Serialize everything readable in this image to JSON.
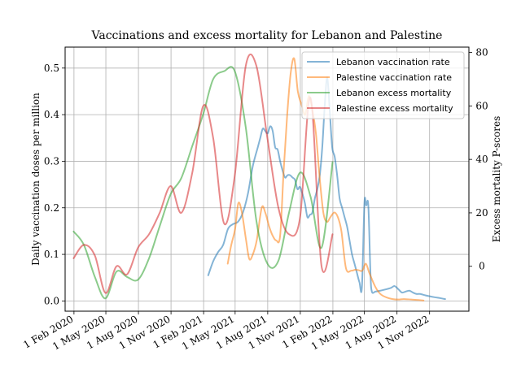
{
  "chart_data": {
    "type": "line",
    "title": "Vaccinations and excess mortality for Lebanon and Palestine",
    "ylabel_left": "Daily vaccination doses per million",
    "ylabel_right": "Excess mortality P-scores",
    "ylim_left": [
      -0.022,
      0.545
    ],
    "ylim_right": [
      -16.8,
      82
    ],
    "yticks_left": [
      0.0,
      0.1,
      0.2,
      0.3,
      0.4,
      0.5
    ],
    "yticks_right": [
      0,
      20,
      40,
      60,
      80
    ],
    "ytick_labels_left": [
      "0.0",
      "0.1",
      "0.2",
      "0.3",
      "0.4",
      "0.5"
    ],
    "ytick_labels_right": [
      "0",
      "20",
      "40",
      "60",
      "80"
    ],
    "xlim": [
      "2020-01-07",
      "2023-02-20"
    ],
    "xticks": [
      "2020-02-01",
      "2020-05-01",
      "2020-08-01",
      "2020-11-01",
      "2021-02-01",
      "2021-05-01",
      "2021-08-01",
      "2021-11-01",
      "2022-02-01",
      "2022-05-01",
      "2022-08-01",
      "2022-11-01"
    ],
    "xtick_labels": [
      "1 Feb 2020",
      "1 May 2020",
      "1 Aug 2020",
      "1 Nov 2020",
      "1 Feb 2021",
      "1 May 2021",
      "1 Aug 2021",
      "1 Nov 2021",
      "1 Feb 2022",
      "1 May 2022",
      "1 Aug 2022",
      "1 Nov 2022"
    ],
    "grid": true,
    "legend_position": "top-right",
    "series": [
      {
        "name": "Lebanon vaccination rate",
        "axis": "left",
        "color": "#1f77b4",
        "x": [
          "2021-02-14",
          "2021-02-28",
          "2021-03-14",
          "2021-03-28",
          "2021-04-11",
          "2021-04-25",
          "2021-05-09",
          "2021-05-23",
          "2021-06-06",
          "2021-06-20",
          "2021-07-04",
          "2021-07-11",
          "2021-07-18",
          "2021-07-25",
          "2021-08-01",
          "2021-08-08",
          "2021-08-15",
          "2021-08-22",
          "2021-08-29",
          "2021-09-05",
          "2021-09-12",
          "2021-09-19",
          "2021-09-26",
          "2021-10-03",
          "2021-10-10",
          "2021-10-17",
          "2021-10-24",
          "2021-10-31",
          "2021-11-07",
          "2021-11-14",
          "2021-11-21",
          "2021-11-28",
          "2021-12-05",
          "2021-12-12",
          "2021-12-19",
          "2021-12-26",
          "2022-01-02",
          "2022-01-09",
          "2022-01-16",
          "2022-01-23",
          "2022-01-30",
          "2022-02-06",
          "2022-02-13",
          "2022-02-20",
          "2022-02-27",
          "2022-03-06",
          "2022-03-13",
          "2022-03-20",
          "2022-03-27",
          "2022-04-03",
          "2022-04-10",
          "2022-04-17",
          "2022-04-24",
          "2022-05-01",
          "2022-05-06",
          "2022-05-12",
          "2022-05-18",
          "2022-05-22",
          "2022-06-01",
          "2022-06-15",
          "2022-07-01",
          "2022-07-15",
          "2022-07-25",
          "2022-08-05",
          "2022-08-15",
          "2022-08-25",
          "2022-09-05",
          "2022-09-15",
          "2022-09-25",
          "2022-10-05",
          "2022-10-20",
          "2022-11-01",
          "2022-11-15",
          "2022-12-01",
          "2022-12-15"
        ],
        "y": [
          0.055,
          0.085,
          0.105,
          0.12,
          0.155,
          0.165,
          0.17,
          0.19,
          0.23,
          0.29,
          0.33,
          0.35,
          0.37,
          0.365,
          0.36,
          0.375,
          0.365,
          0.33,
          0.325,
          0.3,
          0.28,
          0.265,
          0.27,
          0.27,
          0.265,
          0.26,
          0.24,
          0.245,
          0.23,
          0.21,
          0.18,
          0.185,
          0.19,
          0.22,
          0.24,
          0.27,
          0.33,
          0.42,
          0.48,
          0.41,
          0.33,
          0.31,
          0.27,
          0.22,
          0.2,
          0.18,
          0.16,
          0.13,
          0.1,
          0.08,
          0.06,
          0.04,
          0.03,
          0.21,
          0.205,
          0.205,
          0.06,
          0.02,
          0.02,
          0.022,
          0.025,
          0.028,
          0.032,
          0.025,
          0.018,
          0.02,
          0.022,
          0.018,
          0.015,
          0.015,
          0.012,
          0.01,
          0.008,
          0.006,
          0.004
        ]
      },
      {
        "name": "Palestine vaccination rate",
        "axis": "left",
        "color": "#ff7f0e",
        "x": [
          "2021-04-10",
          "2021-04-20",
          "2021-05-01",
          "2021-05-10",
          "2021-05-20",
          "2021-06-01",
          "2021-06-10",
          "2021-06-20",
          "2021-07-01",
          "2021-07-15",
          "2021-07-25",
          "2021-08-05",
          "2021-08-15",
          "2021-08-25",
          "2021-09-05",
          "2021-09-15",
          "2021-09-25",
          "2021-10-05",
          "2021-10-15",
          "2021-10-25",
          "2021-11-05",
          "2021-11-15",
          "2021-11-25",
          "2021-12-05",
          "2021-12-15",
          "2021-12-25",
          "2022-01-05",
          "2022-01-15",
          "2022-01-25",
          "2022-02-05",
          "2022-02-15",
          "2022-02-25",
          "2022-03-10",
          "2022-03-25",
          "2022-04-05",
          "2022-04-15",
          "2022-04-25",
          "2022-05-05",
          "2022-05-15",
          "2022-06-01",
          "2022-06-15",
          "2022-07-01",
          "2022-07-20",
          "2022-08-05",
          "2022-08-20",
          "2022-09-10",
          "2022-10-01",
          "2022-10-15"
        ],
        "y": [
          0.08,
          0.12,
          0.155,
          0.21,
          0.19,
          0.13,
          0.09,
          0.1,
          0.13,
          0.2,
          0.19,
          0.16,
          0.14,
          0.13,
          0.14,
          0.28,
          0.4,
          0.49,
          0.52,
          0.45,
          0.42,
          0.4,
          0.44,
          0.41,
          0.36,
          0.27,
          0.19,
          0.17,
          0.18,
          0.19,
          0.18,
          0.15,
          0.07,
          0.065,
          0.067,
          0.066,
          0.065,
          0.08,
          0.06,
          0.03,
          0.015,
          0.008,
          0.004,
          0.003,
          0.004,
          0.003,
          0.002,
          0.001
        ]
      },
      {
        "name": "Lebanon excess mortality",
        "axis": "right",
        "color": "#2ca02c",
        "x": [
          "2020-01-31",
          "2020-02-29",
          "2020-03-31",
          "2020-04-30",
          "2020-05-31",
          "2020-06-30",
          "2020-07-31",
          "2020-08-31",
          "2020-09-30",
          "2020-10-31",
          "2020-11-30",
          "2020-12-31",
          "2021-01-31",
          "2021-02-28",
          "2021-03-31",
          "2021-04-30",
          "2021-05-31",
          "2021-06-30",
          "2021-07-31",
          "2021-08-31",
          "2021-09-30",
          "2021-10-31",
          "2021-11-30",
          "2021-12-31",
          "2022-01-31"
        ],
        "y": [
          13,
          8,
          -4,
          -12,
          -2,
          -4,
          -5,
          3,
          15,
          27,
          33,
          45,
          57,
          70,
          73,
          73,
          52,
          17,
          1,
          2,
          20,
          35,
          26,
          7,
          39
        ]
      },
      {
        "name": "Palestine excess mortality",
        "axis": "right",
        "color": "#d62728",
        "x": [
          "2020-01-31",
          "2020-02-29",
          "2020-03-31",
          "2020-04-30",
          "2020-05-31",
          "2020-06-30",
          "2020-07-31",
          "2020-08-31",
          "2020-09-30",
          "2020-10-31",
          "2020-11-30",
          "2020-12-31",
          "2021-01-31",
          "2021-02-28",
          "2021-03-31",
          "2021-04-30",
          "2021-05-31",
          "2021-06-30",
          "2021-07-31",
          "2021-08-31",
          "2021-09-30",
          "2021-10-31",
          "2021-11-30",
          "2021-12-31",
          "2022-01-31"
        ],
        "y": [
          3,
          8,
          4,
          -10,
          0,
          -3,
          7,
          12,
          20,
          30,
          20,
          35,
          60,
          48,
          16,
          34,
          75,
          75,
          48,
          22,
          12,
          18,
          63,
          0,
          12
        ]
      }
    ]
  }
}
